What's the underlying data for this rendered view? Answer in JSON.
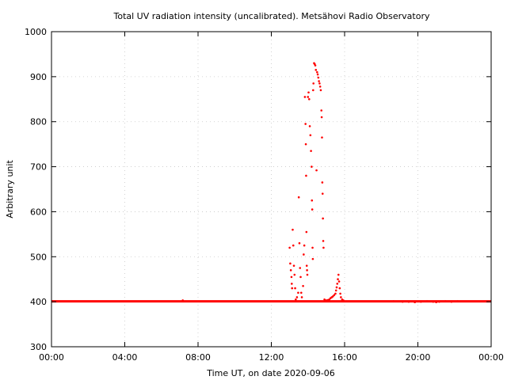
{
  "chart_data": {
    "type": "scatter",
    "title": "Total UV radiation intensity (uncalibrated). Metsähovi Radio Observatory",
    "xlabel": "Time UT, on date 2020-09-06",
    "ylabel": "Arbitrary unit",
    "xlim": [
      "00:00",
      "24:00"
    ],
    "ylim": [
      300,
      1000
    ],
    "x_ticks": [
      "00:00",
      "04:00",
      "08:00",
      "12:00",
      "16:00",
      "20:00",
      "00:00"
    ],
    "y_ticks": [
      "300",
      "400",
      "500",
      "600",
      "700",
      "800",
      "900",
      "1000"
    ],
    "grid": true,
    "marker_color": "#ff0000",
    "baseline": {
      "value": 401,
      "from": "00:00",
      "to": "24:00"
    },
    "series": [
      {
        "points": [
          [
            "13:00",
            520
          ],
          [
            "13:02",
            485
          ],
          [
            "13:04",
            470
          ],
          [
            "13:06",
            455
          ],
          [
            "13:07",
            440
          ],
          [
            "13:08",
            430
          ],
          [
            "13:10",
            560
          ],
          [
            "13:12",
            525
          ],
          [
            "13:14",
            480
          ],
          [
            "13:16",
            460
          ],
          [
            "13:18",
            430
          ],
          [
            "13:20",
            405
          ],
          [
            "13:24",
            410
          ],
          [
            "13:28",
            420
          ],
          [
            "13:30",
            632
          ],
          [
            "13:32",
            530
          ],
          [
            "13:34",
            475
          ],
          [
            "13:36",
            455
          ],
          [
            "13:38",
            420
          ],
          [
            "13:40",
            410
          ],
          [
            "13:44",
            435
          ],
          [
            "13:46",
            505
          ],
          [
            "13:48",
            525
          ],
          [
            "13:50",
            855
          ],
          [
            "13:52",
            795
          ],
          [
            "13:53",
            750
          ],
          [
            "13:54",
            680
          ],
          [
            "13:55",
            555
          ],
          [
            "13:56",
            480
          ],
          [
            "13:57",
            470
          ],
          [
            "13:58",
            460
          ],
          [
            "14:00",
            855
          ],
          [
            "14:02",
            865
          ],
          [
            "14:04",
            850
          ],
          [
            "14:06",
            790
          ],
          [
            "14:08",
            770
          ],
          [
            "14:10",
            735
          ],
          [
            "14:12",
            700
          ],
          [
            "14:13",
            625
          ],
          [
            "14:14",
            605
          ],
          [
            "14:15",
            520
          ],
          [
            "14:16",
            495
          ],
          [
            "14:17",
            870
          ],
          [
            "14:18",
            885
          ],
          [
            "14:20",
            930
          ],
          [
            "14:22",
            928
          ],
          [
            "14:24",
            925
          ],
          [
            "14:26",
            915
          ],
          [
            "14:28",
            692
          ],
          [
            "14:30",
            910
          ],
          [
            "14:32",
            905
          ],
          [
            "14:34",
            898
          ],
          [
            "14:36",
            890
          ],
          [
            "14:38",
            885
          ],
          [
            "14:40",
            878
          ],
          [
            "14:42",
            870
          ],
          [
            "14:44",
            825
          ],
          [
            "14:45",
            810
          ],
          [
            "14:46",
            765
          ],
          [
            "14:47",
            665
          ],
          [
            "14:48",
            640
          ],
          [
            "14:49",
            585
          ],
          [
            "14:50",
            535
          ],
          [
            "14:51",
            520
          ],
          [
            "14:54",
            405
          ],
          [
            "14:58",
            403
          ],
          [
            "15:02",
            403
          ],
          [
            "15:06",
            404
          ],
          [
            "15:10",
            405
          ],
          [
            "15:14",
            408
          ],
          [
            "15:18",
            410
          ],
          [
            "15:22",
            412
          ],
          [
            "15:26",
            415
          ],
          [
            "15:30",
            418
          ],
          [
            "15:32",
            425
          ],
          [
            "15:34",
            432
          ],
          [
            "15:36",
            440
          ],
          [
            "15:38",
            450
          ],
          [
            "15:40",
            460
          ],
          [
            "15:42",
            445
          ],
          [
            "15:44",
            430
          ],
          [
            "15:46",
            418
          ],
          [
            "15:48",
            410
          ],
          [
            "15:52",
            405
          ],
          [
            "15:56",
            403
          ],
          [
            "07:10",
            403
          ],
          [
            "18:40",
            401
          ],
          [
            "19:10",
            400
          ],
          [
            "19:30",
            400
          ],
          [
            "19:50",
            399
          ],
          [
            "20:10",
            400
          ],
          [
            "20:30",
            401
          ],
          [
            "20:50",
            400
          ],
          [
            "21:00",
            399
          ],
          [
            "21:10",
            400
          ],
          [
            "21:30",
            401
          ],
          [
            "21:50",
            400
          ],
          [
            "22:10",
            401
          ]
        ]
      }
    ]
  }
}
